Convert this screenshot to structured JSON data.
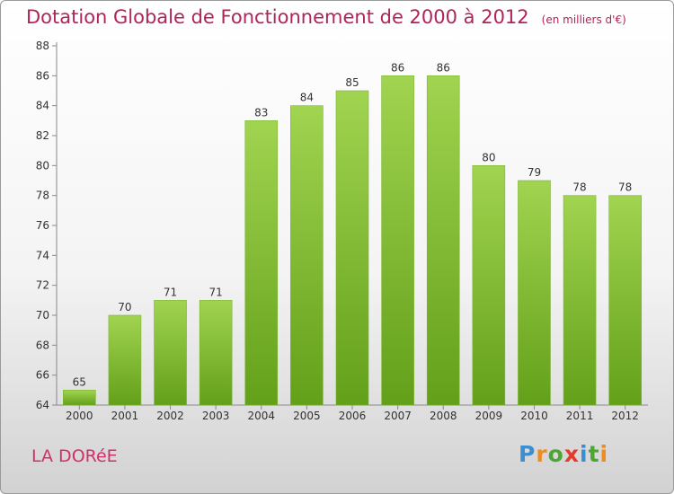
{
  "chart_data": {
    "type": "bar",
    "title": "Dotation Globale de Fonctionnement de 2000 à 2012",
    "subtitle": "(en milliers d'€)",
    "xlabel": "",
    "ylabel": "",
    "categories": [
      "2000",
      "2001",
      "2002",
      "2003",
      "2004",
      "2005",
      "2006",
      "2007",
      "2008",
      "2009",
      "2010",
      "2011",
      "2012"
    ],
    "values": [
      65,
      70,
      71,
      71,
      83,
      84,
      85,
      86,
      86,
      80,
      79,
      78,
      78
    ],
    "ylim": [
      64,
      88
    ],
    "yticks": [
      64,
      66,
      68,
      70,
      72,
      74,
      76,
      78,
      80,
      82,
      84,
      86,
      88
    ],
    "grid": false,
    "bar_color": "#8cc63e"
  },
  "place_name": "LA DORéE",
  "logo": {
    "letters": [
      "P",
      "r",
      "o",
      "x",
      "i",
      "t",
      "i"
    ],
    "colors": [
      "#3a8fd0",
      "#f08c1e",
      "#4aa832",
      "#e33a2a",
      "#3a8fd0",
      "#4aa832",
      "#f08c1e"
    ]
  }
}
